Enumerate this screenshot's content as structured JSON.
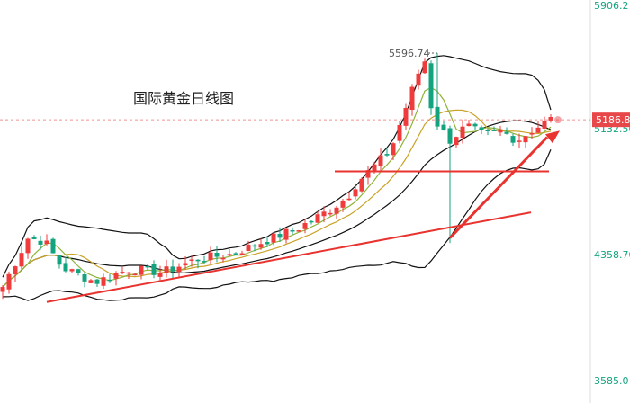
{
  "chart_data": {
    "type": "candlestick",
    "title": "国际黄金日线图",
    "y_axis": {
      "ticks": [
        "5906.2",
        "5132.50",
        "4358.70",
        "3585.0"
      ],
      "tick_values": [
        5906.2,
        5132.5,
        4358.7,
        3585.0
      ],
      "side": "right"
    },
    "last_price_label": "5186.8",
    "last_price": 5186.8,
    "high_annotation": "5596.74",
    "high_value": 5596.74,
    "colors": {
      "up": "#ef3b3b",
      "down": "#14a37f",
      "ma_short": "#c9a227",
      "ma_mid": "#8fb33a",
      "bollinger": "#111111",
      "axis_text": "#14a37f",
      "price_tag": "#e8474a",
      "annotation": "#e8332f"
    },
    "annotations": [
      {
        "kind": "line",
        "from": [
          3914,
          4067
        ],
        "to": [
          4475,
          4618
        ]
      },
      {
        "kind": "line",
        "from": [
          4870,
          4978
        ],
        "to": [
          5033,
          4921
        ]
      },
      {
        "kind": "arrow",
        "from": [
          4937,
          4461
        ],
        "to": [
          5118,
          5118
        ]
      },
      {
        "kind": "line",
        "from": [
          4846,
          4843
        ],
        "to": [
          4846,
          4843
        ]
      }
    ],
    "grid": false
  }
}
